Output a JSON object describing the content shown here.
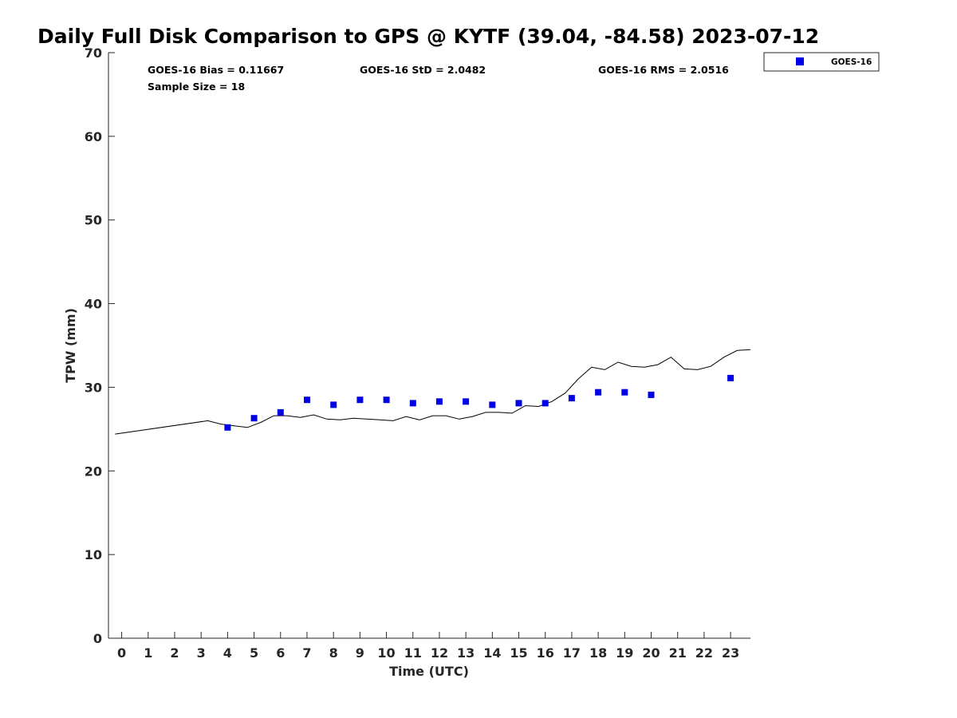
{
  "chart_data": {
    "type": "scatter",
    "title": "Daily Full Disk Comparison to GPS @ KYTF (39.04, -84.58) 2023-07-12",
    "xlabel": "Time (UTC)",
    "ylabel": "TPW (mm)",
    "xlim": [
      -0.5,
      23.75
    ],
    "ylim": [
      0,
      70
    ],
    "xticks": [
      0,
      1,
      2,
      3,
      4,
      5,
      6,
      7,
      8,
      9,
      10,
      11,
      12,
      13,
      14,
      15,
      16,
      17,
      18,
      19,
      20,
      21,
      22,
      23
    ],
    "yticks": [
      0,
      10,
      20,
      30,
      40,
      50,
      60,
      70
    ],
    "grid": false,
    "legend_position": "top-right, outside plot",
    "stats": {
      "bias": "GOES-16 Bias = 0.11667",
      "std": "GOES-16 StD = 2.0482",
      "rms": "GOES-16 RMS = 2.0516",
      "sample_size": "Sample Size = 18"
    },
    "series": [
      {
        "name": "GOES-16",
        "kind": "scatter",
        "marker": "square",
        "color": "#0000e6",
        "points": [
          [
            4,
            25.2
          ],
          [
            5,
            26.3
          ],
          [
            6,
            27.0
          ],
          [
            7,
            28.5
          ],
          [
            8,
            27.9
          ],
          [
            9,
            28.5
          ],
          [
            10,
            28.5
          ],
          [
            11,
            28.1
          ],
          [
            12,
            28.3
          ],
          [
            13,
            28.3
          ],
          [
            14,
            27.9
          ],
          [
            15,
            28.1
          ],
          [
            16,
            28.1
          ],
          [
            17,
            28.7
          ],
          [
            18,
            29.4
          ],
          [
            19,
            29.4
          ],
          [
            20,
            29.1
          ],
          [
            23,
            31.1
          ]
        ]
      },
      {
        "kind": "line",
        "color": "#000000",
        "points": [
          [
            -0.25,
            24.4
          ],
          [
            3.25,
            26.0
          ],
          [
            3.75,
            25.6
          ],
          [
            4.25,
            25.4
          ],
          [
            4.75,
            25.2
          ],
          [
            5.25,
            25.8
          ],
          [
            5.75,
            26.6
          ],
          [
            6.25,
            26.6
          ],
          [
            6.75,
            26.4
          ],
          [
            7.25,
            26.7
          ],
          [
            7.75,
            26.2
          ],
          [
            8.25,
            26.1
          ],
          [
            8.75,
            26.3
          ],
          [
            9.25,
            26.2
          ],
          [
            9.75,
            26.1
          ],
          [
            10.25,
            26.0
          ],
          [
            10.75,
            26.5
          ],
          [
            11.25,
            26.1
          ],
          [
            11.75,
            26.6
          ],
          [
            12.25,
            26.6
          ],
          [
            12.75,
            26.2
          ],
          [
            13.25,
            26.5
          ],
          [
            13.75,
            27.0
          ],
          [
            14.25,
            27.0
          ],
          [
            14.75,
            26.9
          ],
          [
            15.25,
            27.8
          ],
          [
            15.75,
            27.7
          ],
          [
            16.25,
            28.3
          ],
          [
            16.75,
            29.3
          ],
          [
            17.25,
            31.0
          ],
          [
            17.75,
            32.4
          ],
          [
            18.25,
            32.1
          ],
          [
            18.75,
            33.0
          ],
          [
            19.25,
            32.5
          ],
          [
            19.75,
            32.4
          ],
          [
            20.25,
            32.7
          ],
          [
            20.75,
            33.6
          ],
          [
            21.25,
            32.2
          ],
          [
            21.75,
            32.1
          ],
          [
            22.25,
            32.5
          ],
          [
            22.75,
            33.6
          ],
          [
            23.25,
            34.4
          ],
          [
            23.75,
            34.5
          ]
        ]
      }
    ]
  }
}
